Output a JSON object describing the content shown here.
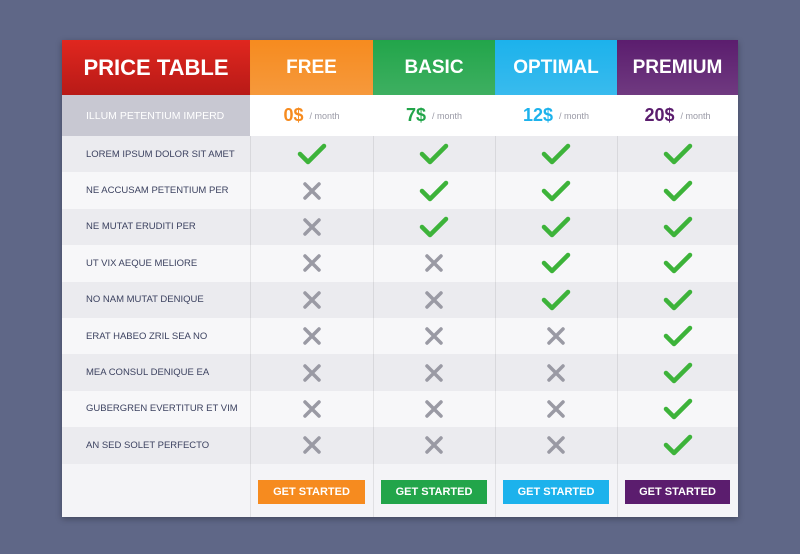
{
  "header": {
    "title": "PRICE TABLE"
  },
  "price_row_label": "ILLUM PETENTIUM IMPERD",
  "features": [
    "LOREM IPSUM DOLOR SIT AMET",
    "NE ACCUSAM PETENTIUM PER",
    "NE MUTAT ERUDITI PER",
    "UT VIX AEQUE MELIORE",
    "NO NAM MUTAT DENIQUE",
    "ERAT HABEO ZRIL SEA NO",
    "MEA CONSUL DENIQUE EA",
    "GUBERGREN EVERTITUR ET VIM",
    "AN SED SOLET PERFECTO"
  ],
  "plans": [
    {
      "name": "FREE",
      "color": "#f68b1f",
      "price": "0$",
      "period": "/ month",
      "button": "GET STARTED",
      "included": [
        true,
        false,
        false,
        false,
        false,
        false,
        false,
        false,
        false
      ]
    },
    {
      "name": "BASIC",
      "color": "#22a54a",
      "price": "7$",
      "period": "/ month",
      "button": "GET STARTED",
      "included": [
        true,
        true,
        true,
        false,
        false,
        false,
        false,
        false,
        false
      ]
    },
    {
      "name": "OPTIMAL",
      "color": "#1cb2ec",
      "price": "12$",
      "period": "/ month",
      "button": "GET STARTED",
      "included": [
        true,
        true,
        true,
        true,
        true,
        false,
        false,
        false,
        false
      ]
    },
    {
      "name": "PREMIUM",
      "color": "#5b1d6e",
      "price": "20$",
      "period": "/ month",
      "button": "GET STARTED",
      "included": [
        true,
        true,
        true,
        true,
        true,
        true,
        true,
        true,
        true
      ]
    }
  ]
}
